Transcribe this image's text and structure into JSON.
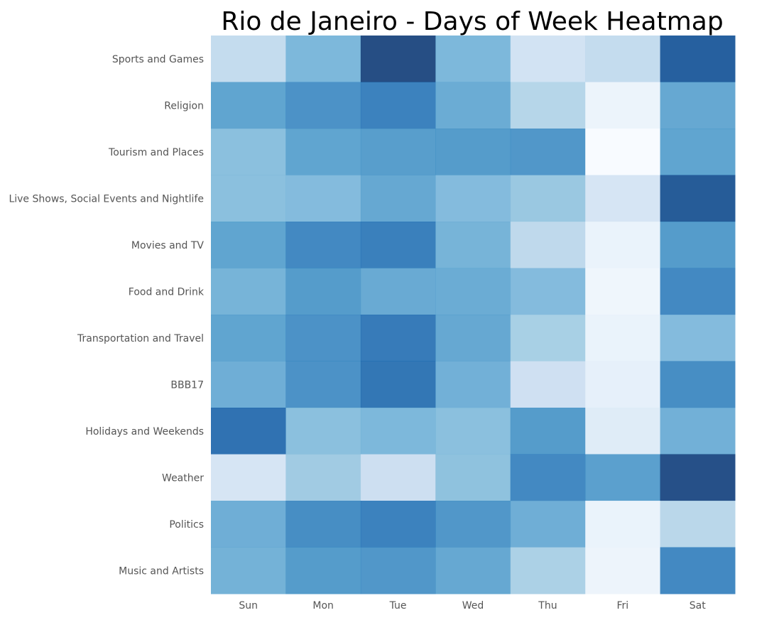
{
  "chart_data": {
    "type": "heatmap",
    "title": "Rio de Janeiro - Days of Week Heatmap",
    "xlabel": "",
    "ylabel": "",
    "x_categories": [
      "Sun",
      "Mon",
      "Tue",
      "Wed",
      "Thu",
      "Fri",
      "Sat"
    ],
    "y_categories": [
      "Sports and Games",
      "Religion",
      "Tourism and Places",
      "Live Shows, Social Events and Nightlife",
      "Movies and TV",
      "Food and Drink",
      "Transportation and Travel",
      "BBB17",
      "Holidays and Weekends",
      "Weather",
      "Politics",
      "Music and Artists"
    ],
    "values": [
      [
        0.28,
        0.5,
        0.98,
        0.5,
        0.22,
        0.28,
        0.9
      ],
      [
        0.6,
        0.68,
        0.75,
        0.56,
        0.33,
        0.07,
        0.58
      ],
      [
        0.46,
        0.6,
        0.63,
        0.64,
        0.66,
        0.0,
        0.6
      ],
      [
        0.46,
        0.48,
        0.58,
        0.48,
        0.42,
        0.2,
        0.92
      ],
      [
        0.6,
        0.72,
        0.76,
        0.52,
        0.3,
        0.08,
        0.64
      ],
      [
        0.52,
        0.64,
        0.57,
        0.56,
        0.48,
        0.05,
        0.72
      ],
      [
        0.6,
        0.68,
        0.78,
        0.58,
        0.38,
        0.08,
        0.48
      ],
      [
        0.55,
        0.68,
        0.8,
        0.54,
        0.24,
        0.1,
        0.7
      ],
      [
        0.82,
        0.46,
        0.5,
        0.46,
        0.64,
        0.14,
        0.54
      ],
      [
        0.2,
        0.4,
        0.25,
        0.45,
        0.72,
        0.62,
        0.97
      ],
      [
        0.55,
        0.7,
        0.75,
        0.66,
        0.55,
        0.08,
        0.32
      ],
      [
        0.53,
        0.64,
        0.66,
        0.58,
        0.37,
        0.06,
        0.72
      ]
    ],
    "colorscale": [
      "#f7fbff",
      "#deebf7",
      "#c6dbef",
      "#9ecae1",
      "#6baed6",
      "#4292c6",
      "#2171b5",
      "#08519c",
      "#08306b"
    ],
    "cell_opacity": 0.88,
    "grid": false,
    "legend": "none"
  }
}
